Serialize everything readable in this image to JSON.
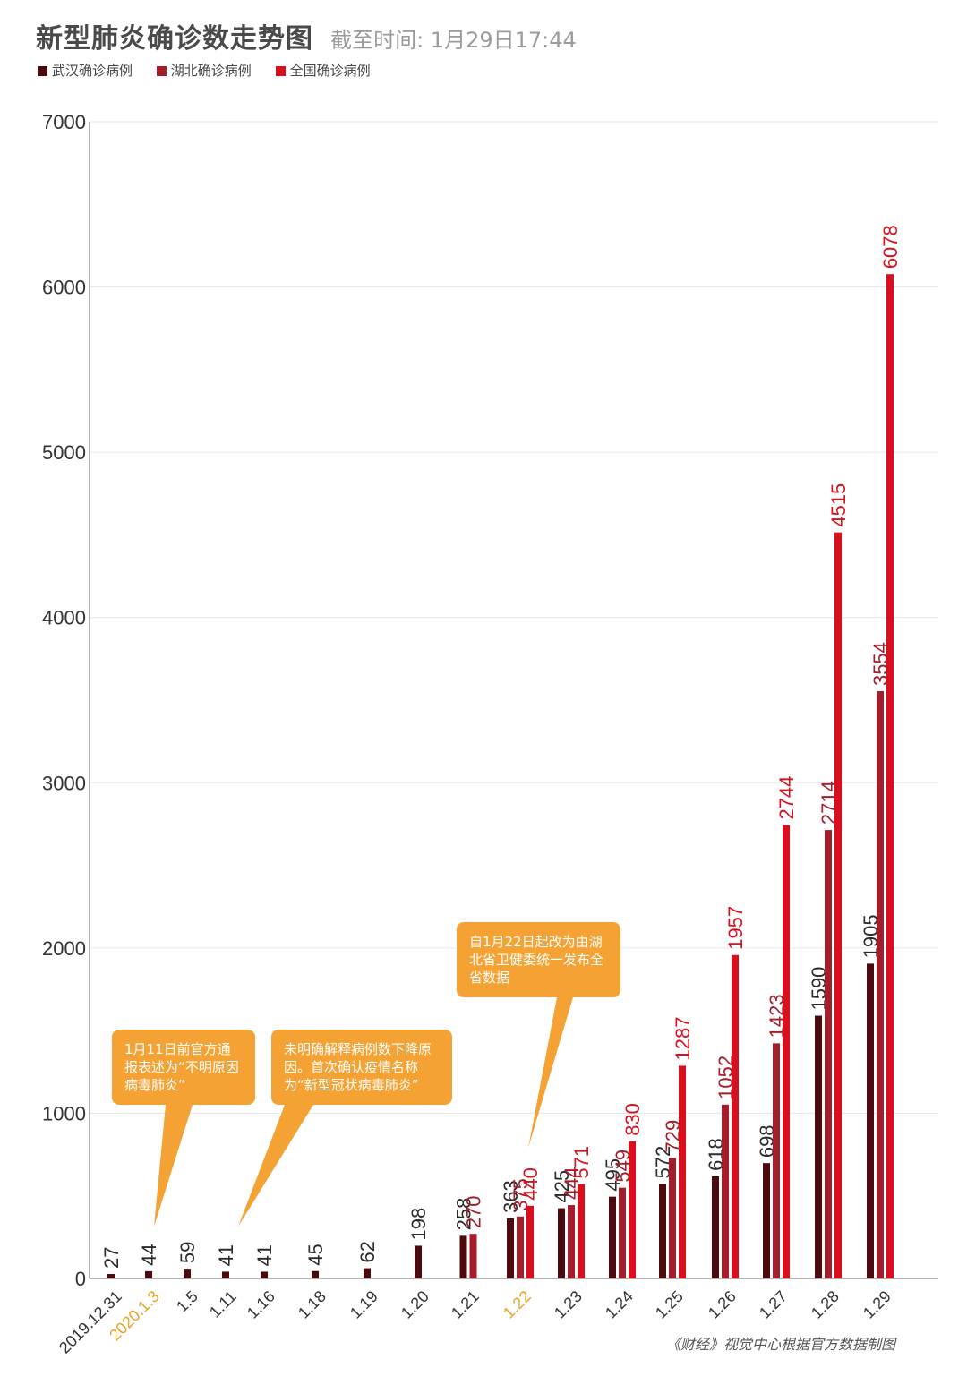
{
  "title": "新型肺炎确诊数走势图",
  "subtitle": "截至时间: 1月29日17:44",
  "legend": [
    {
      "label": "武汉确诊病例",
      "color": "#4a0a0e"
    },
    {
      "label": "湖北确诊病例",
      "color": "#a51c2a"
    },
    {
      "label": "全国确诊病例",
      "color": "#d8101e"
    }
  ],
  "callouts": [
    {
      "text": "1月11日前官方通报表述为“不明原因病毒肺炎”"
    },
    {
      "text": "未明确解释病例数下降原因。首次确认疫情名称为“新型冠状病毒肺炎”"
    },
    {
      "text": "自1月22日起改为由湖北省卫健委统一发布全省数据"
    }
  ],
  "source": "《财经》视觉中心根据官方数据制图",
  "colors": {
    "highlight_date": "#e8a323",
    "callout_bg": "#f3a233",
    "grid": "#e6e6e6"
  },
  "chart_data": {
    "type": "bar",
    "ylim": [
      0,
      7000
    ],
    "yticks": [
      0,
      1000,
      2000,
      3000,
      4000,
      5000,
      6000,
      7000
    ],
    "grid": true,
    "categories": [
      "2019.12.31",
      "2020.1.3",
      "1.5",
      "1.11",
      "1.16",
      "1.18",
      "1.19",
      "1.20",
      "1.21",
      "1.22",
      "1.23",
      "1.24",
      "1.25",
      "1.26",
      "1.27",
      "1.28",
      "1.29"
    ],
    "highlight_categories": [
      "2020.1.3",
      "1.22"
    ],
    "series": [
      {
        "name": "武汉确诊病例",
        "values": [
          27,
          44,
          59,
          41,
          41,
          45,
          62,
          198,
          258,
          363,
          425,
          495,
          572,
          618,
          698,
          1590,
          1905
        ]
      },
      {
        "name": "湖北确诊病例",
        "values": [
          null,
          null,
          null,
          null,
          null,
          null,
          null,
          null,
          270,
          375,
          444,
          549,
          729,
          1052,
          1423,
          2714,
          3554
        ]
      },
      {
        "name": "全国确诊病例",
        "values": [
          null,
          null,
          null,
          null,
          null,
          null,
          null,
          null,
          null,
          440,
          571,
          830,
          1287,
          1957,
          2744,
          4515,
          6078
        ]
      }
    ]
  }
}
